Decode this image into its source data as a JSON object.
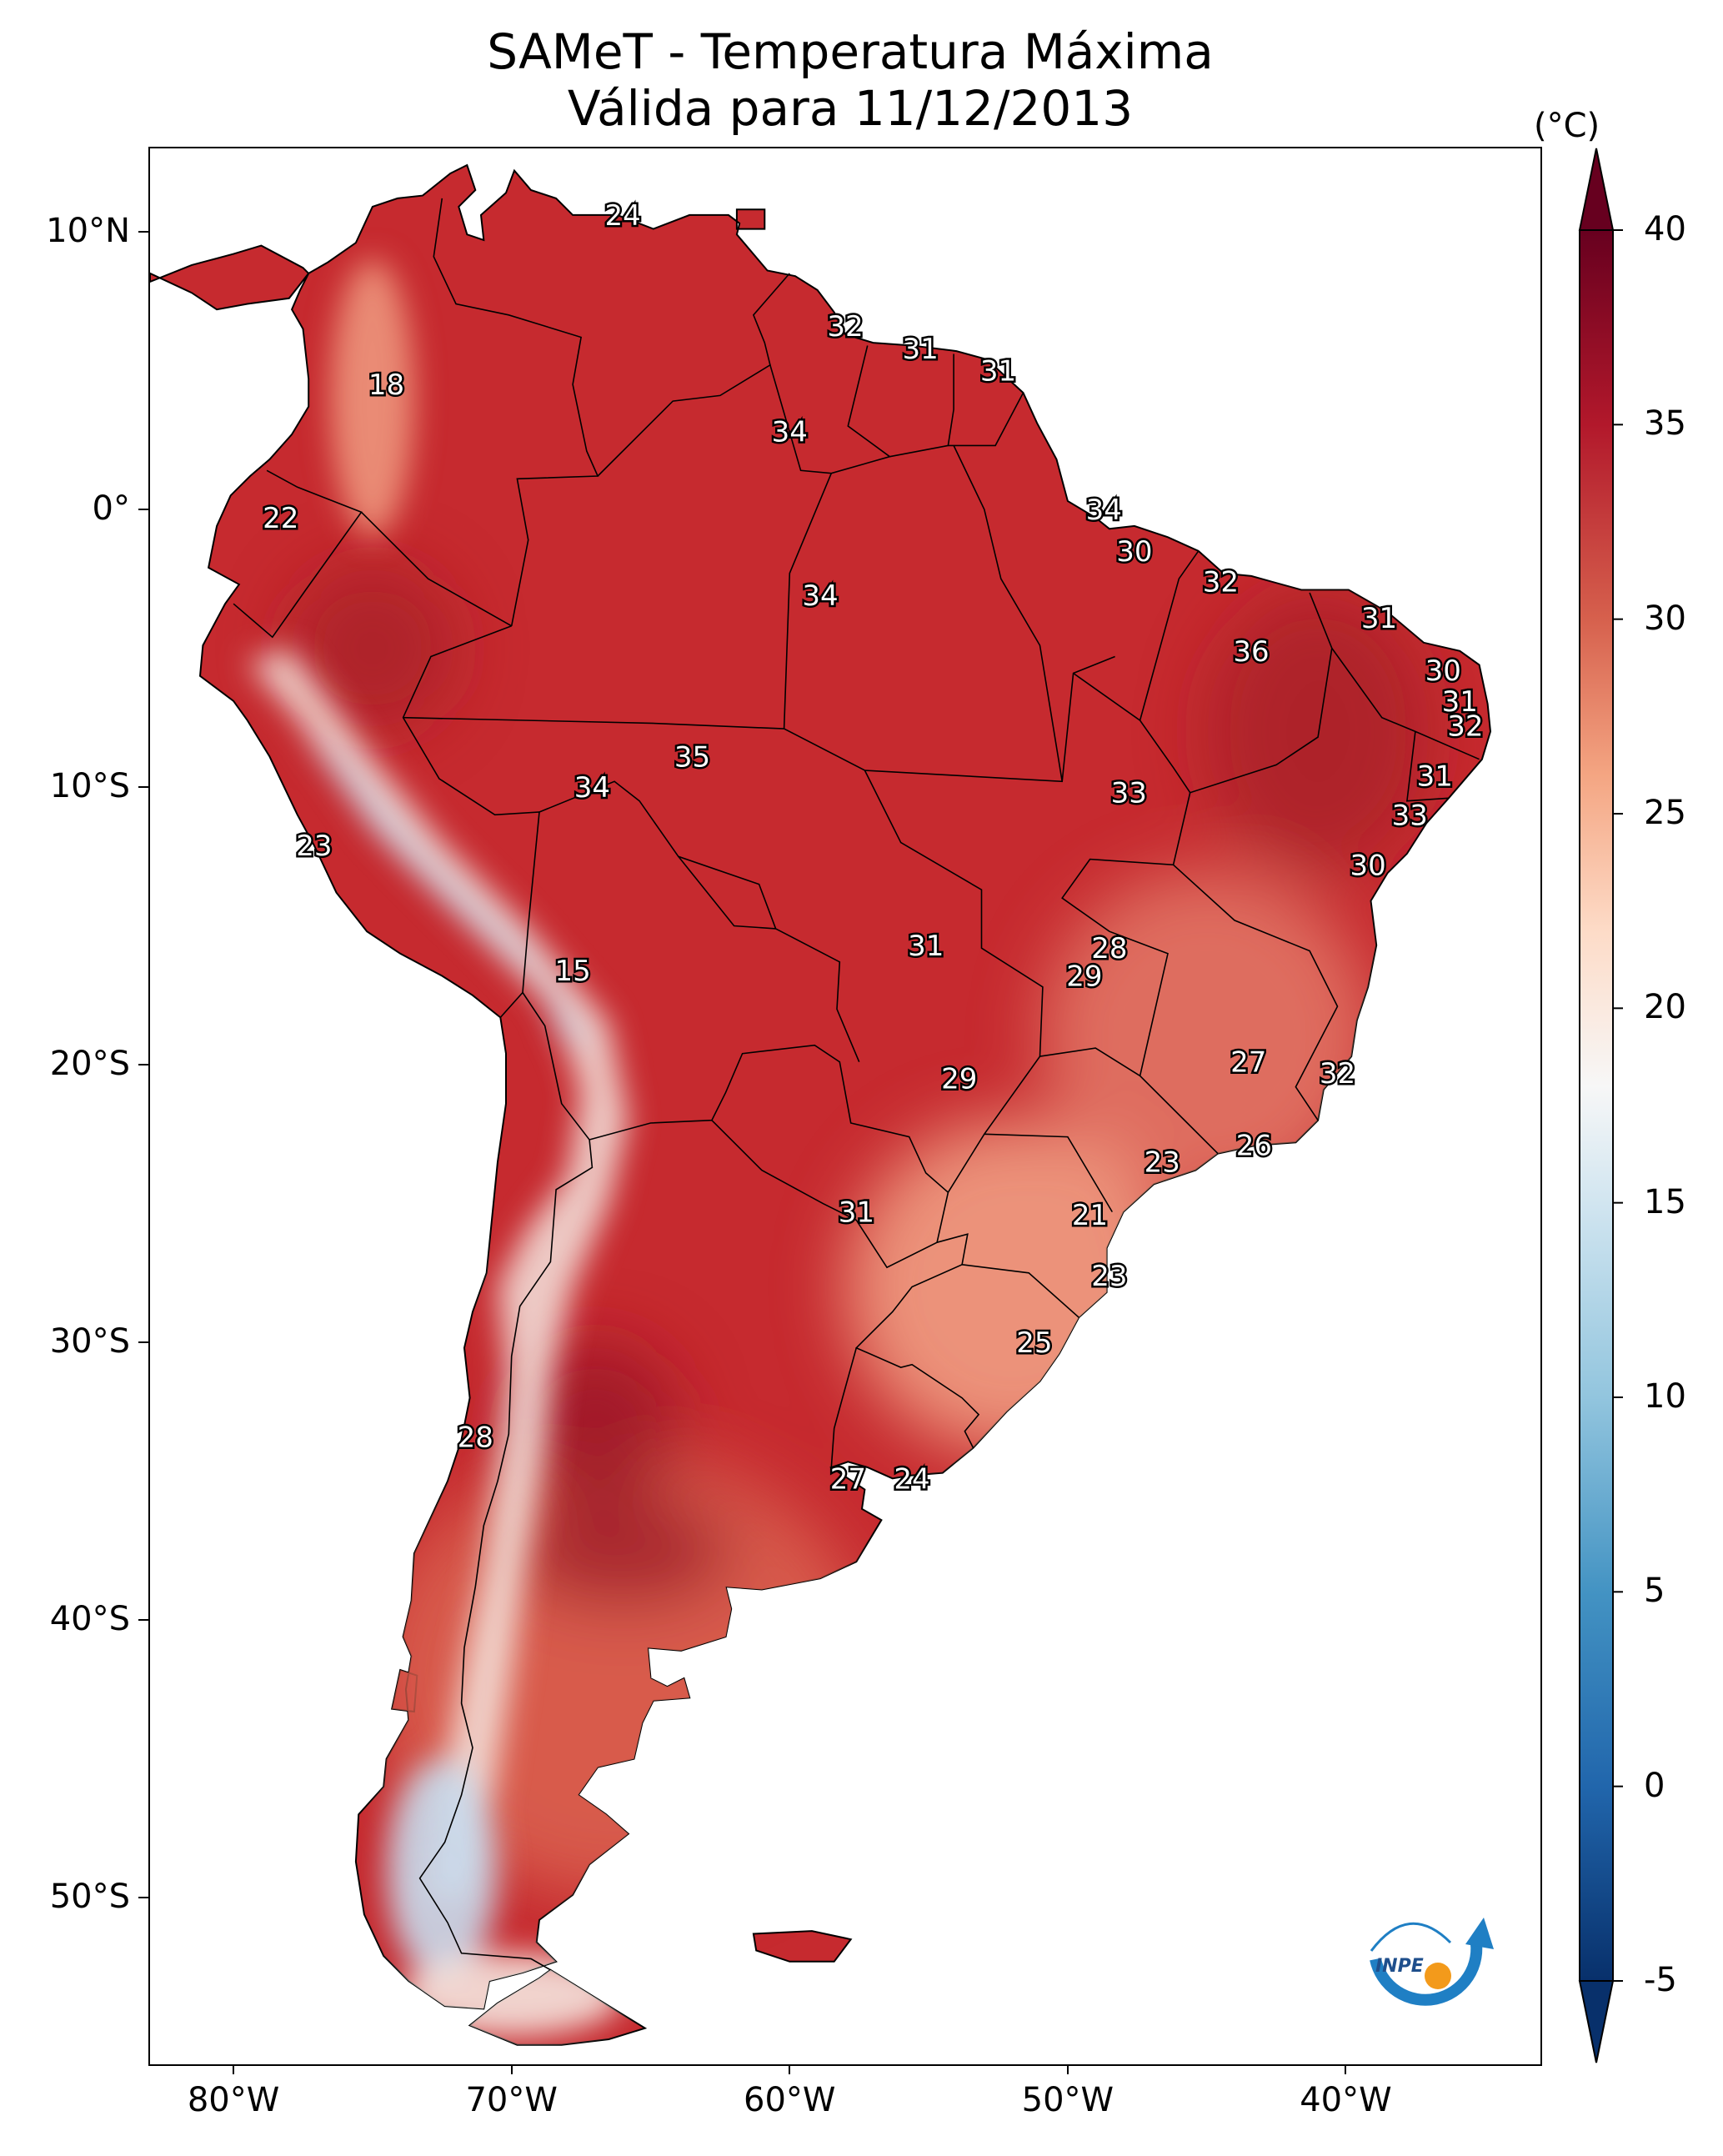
{
  "title": {
    "line1": "SAMeT - Temperatura Máxima",
    "line2": "Válida para 11/12/2013"
  },
  "axes": {
    "lon_range": [
      -83,
      -33
    ],
    "lat_range": [
      -56,
      13
    ],
    "x_ticks": [
      {
        "lon": -80,
        "label": "80°W"
      },
      {
        "lon": -70,
        "label": "70°W"
      },
      {
        "lon": -60,
        "label": "60°W"
      },
      {
        "lon": -50,
        "label": "50°W"
      },
      {
        "lon": -40,
        "label": "40°W"
      }
    ],
    "y_ticks": [
      {
        "lat": 10,
        "label": "10°N"
      },
      {
        "lat": 0,
        "label": "0°"
      },
      {
        "lat": -10,
        "label": "10°S"
      },
      {
        "lat": -20,
        "label": "20°S"
      },
      {
        "lat": -30,
        "label": "30°S"
      },
      {
        "lat": -40,
        "label": "40°S"
      },
      {
        "lat": -50,
        "label": "50°S"
      }
    ]
  },
  "colorbar": {
    "unit": "(°C)",
    "min": -5,
    "max": 40,
    "ticks": [
      {
        "value": 40,
        "label": "40"
      },
      {
        "value": 35,
        "label": "35"
      },
      {
        "value": 30,
        "label": "30"
      },
      {
        "value": 25,
        "label": "25"
      },
      {
        "value": 20,
        "label": "20"
      },
      {
        "value": 15,
        "label": "15"
      },
      {
        "value": 10,
        "label": "10"
      },
      {
        "value": 5,
        "label": "5"
      },
      {
        "value": 0,
        "label": "0"
      },
      {
        "value": -5,
        "label": "-5"
      }
    ],
    "colors": {
      "c_m5": "#08306b",
      "c_0": "#2166ac",
      "c_5": "#4393c3",
      "c_10": "#92c5de",
      "c_15": "#d1e5f0",
      "c_18": "#f7f7f7",
      "c_22": "#fddbc7",
      "c_26": "#f4a582",
      "c_30": "#d6604d",
      "c_35": "#b2182b",
      "c_40": "#67001f"
    }
  },
  "map_colors": {
    "hot": "#c62a2f",
    "very_hot": "#9e1a28",
    "warm": "#d9604f",
    "mild": "#f2a487",
    "cool": "#f5e6df",
    "cold": "#c8dced",
    "border": "#000000"
  },
  "station_labels": [
    {
      "lon": -66,
      "lat": 10.6,
      "value": "24"
    },
    {
      "lon": -58,
      "lat": 6.6,
      "value": "32"
    },
    {
      "lon": -55.3,
      "lat": 5.8,
      "value": "31"
    },
    {
      "lon": -52.5,
      "lat": 5.0,
      "value": "31"
    },
    {
      "lon": -74.5,
      "lat": 4.5,
      "value": "18"
    },
    {
      "lon": -60,
      "lat": 2.8,
      "value": "34"
    },
    {
      "lon": -48.7,
      "lat": 0.0,
      "value": "34"
    },
    {
      "lon": -78.3,
      "lat": -0.3,
      "value": "22"
    },
    {
      "lon": -47.6,
      "lat": -1.5,
      "value": "30"
    },
    {
      "lon": -44.5,
      "lat": -2.6,
      "value": "32"
    },
    {
      "lon": -58.9,
      "lat": -3.1,
      "value": "34"
    },
    {
      "lon": -38.8,
      "lat": -3.9,
      "value": "31"
    },
    {
      "lon": -43.4,
      "lat": -5.1,
      "value": "36"
    },
    {
      "lon": -36.5,
      "lat": -5.8,
      "value": "30"
    },
    {
      "lon": -35.9,
      "lat": -6.9,
      "value": "31"
    },
    {
      "lon": -35.7,
      "lat": -7.8,
      "value": "32"
    },
    {
      "lon": -63.5,
      "lat": -8.9,
      "value": "35"
    },
    {
      "lon": -36.8,
      "lat": -9.6,
      "value": "31"
    },
    {
      "lon": -67.1,
      "lat": -10.0,
      "value": "34"
    },
    {
      "lon": -47.8,
      "lat": -10.2,
      "value": "33"
    },
    {
      "lon": -37.7,
      "lat": -11.0,
      "value": "33"
    },
    {
      "lon": -77.1,
      "lat": -12.1,
      "value": "23"
    },
    {
      "lon": -39.2,
      "lat": -12.8,
      "value": "30"
    },
    {
      "lon": -55.1,
      "lat": -15.7,
      "value": "31"
    },
    {
      "lon": -48.5,
      "lat": -15.8,
      "value": "28"
    },
    {
      "lon": -49.4,
      "lat": -16.8,
      "value": "29"
    },
    {
      "lon": -67.8,
      "lat": -16.6,
      "value": "15"
    },
    {
      "lon": -43.5,
      "lat": -19.9,
      "value": "27"
    },
    {
      "lon": -53.9,
      "lat": -20.5,
      "value": "29"
    },
    {
      "lon": -40.3,
      "lat": -20.3,
      "value": "32"
    },
    {
      "lon": -43.3,
      "lat": -22.9,
      "value": "26"
    },
    {
      "lon": -46.6,
      "lat": -23.5,
      "value": "23"
    },
    {
      "lon": -57.6,
      "lat": -25.3,
      "value": "31"
    },
    {
      "lon": -49.2,
      "lat": -25.4,
      "value": "21"
    },
    {
      "lon": -48.5,
      "lat": -27.6,
      "value": "23"
    },
    {
      "lon": -51.2,
      "lat": -30.0,
      "value": "25"
    },
    {
      "lon": -71.3,
      "lat": -33.4,
      "value": "28"
    },
    {
      "lon": -57.9,
      "lat": -34.9,
      "value": "27"
    },
    {
      "lon": -55.6,
      "lat": -34.9,
      "value": "24"
    }
  ],
  "logo": {
    "text": "INPE"
  }
}
